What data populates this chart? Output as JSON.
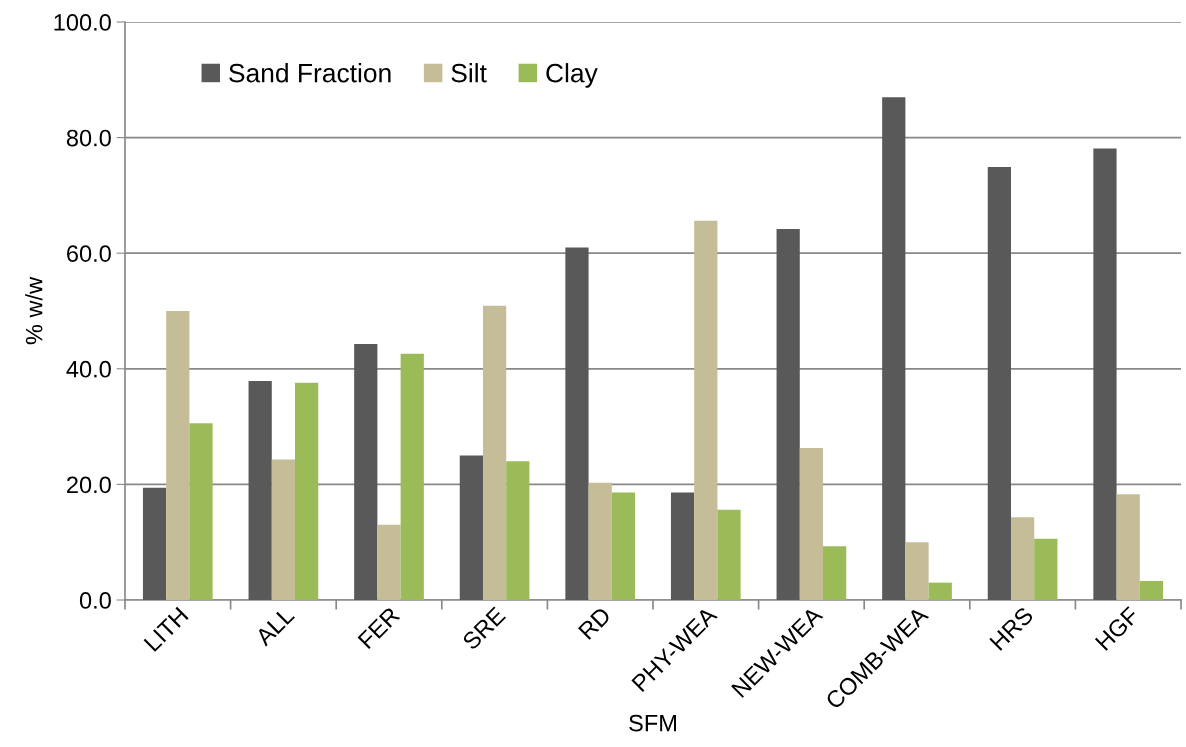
{
  "chart_data": {
    "type": "bar",
    "xlabel": "SFM",
    "ylabel": "% w/w",
    "categories": [
      "LITH",
      "ALL",
      "FER",
      "SRE",
      "RD",
      "PHY-WEA",
      "NEW-WEA",
      "COMB-WEA",
      "HRS",
      "HGF"
    ],
    "series": [
      {
        "name": "Sand Fraction",
        "color": "#595959",
        "values": [
          19.4,
          37.9,
          44.3,
          25.0,
          61.0,
          18.6,
          64.2,
          87.0,
          74.9,
          78.1
        ]
      },
      {
        "name": "Silt",
        "color": "#c4bd97",
        "values": [
          50.0,
          24.3,
          13.0,
          50.9,
          20.3,
          65.6,
          26.3,
          10.0,
          14.3,
          18.3
        ]
      },
      {
        "name": "Clay",
        "color": "#9bbb59",
        "values": [
          30.6,
          37.6,
          42.6,
          24.0,
          18.6,
          15.6,
          9.3,
          3.0,
          10.6,
          3.3
        ]
      }
    ],
    "ylim": [
      0,
      100
    ],
    "yticks": [
      {
        "value": 0,
        "label": "0.0"
      },
      {
        "value": 20,
        "label": "20.0"
      },
      {
        "value": 40,
        "label": "40.0"
      },
      {
        "value": 60,
        "label": "60.0"
      },
      {
        "value": 80,
        "label": "80.0"
      },
      {
        "value": 100,
        "label": "100.0"
      }
    ],
    "grid": "y",
    "legend": "top left"
  }
}
